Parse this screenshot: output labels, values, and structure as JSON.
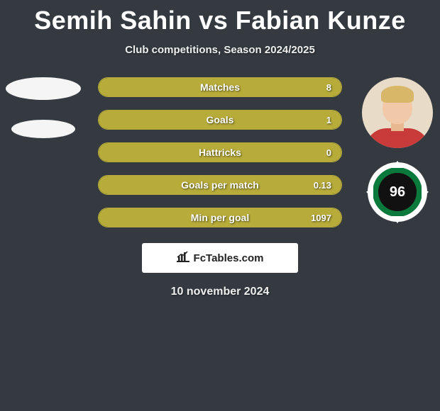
{
  "title": "Semih Sahin vs Fabian Kunze",
  "subtitle": "Club competitions, Season 2024/2025",
  "date": "10 november 2024",
  "attribution": "FcTables.com",
  "colors": {
    "background": "#343a40",
    "bar_fill": "#b7ab3a",
    "bar_border": "#b7ab3a",
    "text": "#ffffff",
    "club_green": "#0a7a3c",
    "club_black": "#111111",
    "club_white": "#ffffff"
  },
  "club_badge_text": "96",
  "bars": [
    {
      "label": "Matches",
      "value": "8",
      "fill_pct": 100
    },
    {
      "label": "Goals",
      "value": "1",
      "fill_pct": 100
    },
    {
      "label": "Hattricks",
      "value": "0",
      "fill_pct": 100
    },
    {
      "label": "Goals per match",
      "value": "0.13",
      "fill_pct": 100
    },
    {
      "label": "Min per goal",
      "value": "1097",
      "fill_pct": 100
    }
  ]
}
